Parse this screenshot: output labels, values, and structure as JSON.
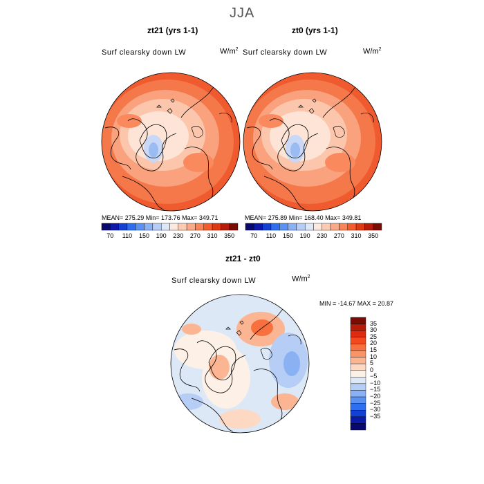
{
  "figure": {
    "title": "JJA"
  },
  "panels": [
    {
      "title": "zt21 (yrs 1-1)",
      "subtitle": "Surf clearsky down LW",
      "units_base": "W/m",
      "units_sup": "2",
      "stats": "MEAN= 275.29   Min= 173.76   Max= 349.71"
    },
    {
      "title": "zt0 (yrs 1-1)",
      "subtitle": "Surf clearsky down LW",
      "units_base": "W/m",
      "units_sup": "2",
      "stats": "MEAN= 275.89   Min= 168.40   Max= 349.81"
    },
    {
      "title": "zt21 - zt0",
      "subtitle": "Surf clearsky down LW",
      "units_base": "W/m",
      "units_sup": "2",
      "stats": "MIN = -14.67  MAX =   20.87"
    }
  ],
  "colorbar_abs": {
    "colors": [
      "#08086e",
      "#0c1aa8",
      "#1540d6",
      "#2e6ef0",
      "#5b92f2",
      "#8ab1f4",
      "#b6cdf6",
      "#dde8f7",
      "#fde8de",
      "#fccbb4",
      "#fba986",
      "#fa8458",
      "#f45c2e",
      "#de3a13",
      "#b51d08",
      "#7a0c04"
    ],
    "labels": [
      "70",
      "110",
      "150",
      "190",
      "230",
      "270",
      "310",
      "350"
    ]
  },
  "colorbar_diff": {
    "colors": [
      "#7a0c04",
      "#b51d08",
      "#de2a0e",
      "#f24a1e",
      "#f7703e",
      "#fa9466",
      "#fbb592",
      "#fdd8c2",
      "#fdf0e6",
      "#dde8f7",
      "#b6cdf6",
      "#8ab1f4",
      "#5b92f2",
      "#2e6ef0",
      "#1540d6",
      "#0c1aa8",
      "#08086e"
    ],
    "labels": [
      "35",
      "30",
      "25",
      "20",
      "15",
      "10",
      "5",
      "0",
      "−5",
      "−10",
      "−15",
      "−20",
      "−25",
      "−30",
      "−35"
    ]
  },
  "chart_data": [
    {
      "type": "heatmap",
      "title": "zt21 (yrs 1-1)",
      "subtitle": "Surf clearsky down LW",
      "units": "W/m2",
      "projection": "north polar stereographic",
      "season": "JJA",
      "stats": {
        "mean": 275.29,
        "min": 173.76,
        "max": 349.71
      },
      "contour_levels": [
        70,
        90,
        110,
        130,
        150,
        170,
        190,
        210,
        230,
        250,
        270,
        290,
        310,
        330,
        350
      ]
    },
    {
      "type": "heatmap",
      "title": "zt0 (yrs 1-1)",
      "subtitle": "Surf clearsky down LW",
      "units": "W/m2",
      "projection": "north polar stereographic",
      "season": "JJA",
      "stats": {
        "mean": 275.89,
        "min": 168.4,
        "max": 349.81
      },
      "contour_levels": [
        70,
        90,
        110,
        130,
        150,
        170,
        190,
        210,
        230,
        250,
        270,
        290,
        310,
        330,
        350
      ]
    },
    {
      "type": "heatmap",
      "title": "zt21 - zt0",
      "subtitle": "Surf clearsky down LW",
      "units": "W/m2",
      "projection": "north polar stereographic",
      "season": "JJA",
      "stats": {
        "min": -14.67,
        "max": 20.87
      },
      "contour_levels": [
        -35,
        -30,
        -25,
        -20,
        -15,
        -10,
        -5,
        0,
        5,
        10,
        15,
        20,
        25,
        30,
        35
      ]
    }
  ]
}
